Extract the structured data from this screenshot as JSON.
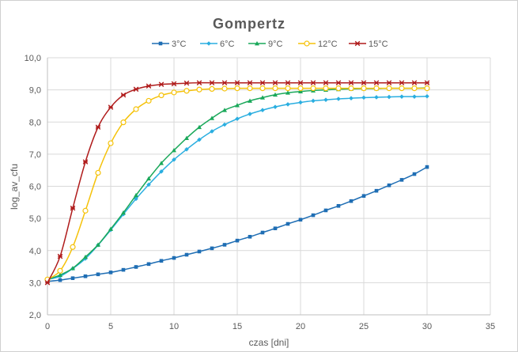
{
  "chart_data": {
    "type": "line",
    "title": "Gompertz",
    "xlabel": "czas [dni]",
    "ylabel": "log_av_cfu",
    "xlim": [
      0,
      35
    ],
    "ylim": [
      2.0,
      10.0
    ],
    "x_ticks": [
      "0",
      "5",
      "10",
      "15",
      "20",
      "25",
      "30",
      "35"
    ],
    "y_ticks": [
      "2,0",
      "3,0",
      "4,0",
      "5,0",
      "6,0",
      "7,0",
      "8,0",
      "9,0",
      "10,0"
    ],
    "grid": true,
    "legend_position": "top",
    "series": [
      {
        "name": "3°C",
        "color": "#1f6eb4",
        "marker": "square",
        "x": [
          0,
          1,
          2,
          3,
          4,
          5,
          6,
          7,
          8,
          9,
          10,
          11,
          12,
          13,
          14,
          15,
          16,
          17,
          18,
          19,
          20,
          21,
          22,
          23,
          24,
          25,
          26,
          27,
          28,
          29,
          30
        ],
        "y": [
          3.04,
          3.08,
          3.14,
          3.2,
          3.26,
          3.32,
          3.4,
          3.49,
          3.58,
          3.68,
          3.77,
          3.87,
          3.97,
          4.07,
          4.18,
          4.31,
          4.43,
          4.56,
          4.69,
          4.83,
          4.96,
          5.1,
          5.25,
          5.39,
          5.54,
          5.7,
          5.86,
          6.03,
          6.2,
          6.38,
          6.6
        ]
      },
      {
        "name": "6°C",
        "color": "#2aaee0",
        "marker": "diamond",
        "x": [
          0,
          1,
          2,
          3,
          4,
          5,
          6,
          7,
          8,
          9,
          10,
          11,
          12,
          13,
          14,
          15,
          16,
          17,
          18,
          19,
          20,
          21,
          22,
          23,
          24,
          25,
          26,
          27,
          28,
          29,
          30
        ],
        "y": [
          3.1,
          3.2,
          3.44,
          3.75,
          4.17,
          4.64,
          5.13,
          5.61,
          6.05,
          6.46,
          6.83,
          7.15,
          7.45,
          7.71,
          7.92,
          8.1,
          8.25,
          8.37,
          8.47,
          8.55,
          8.61,
          8.66,
          8.69,
          8.72,
          8.74,
          8.76,
          8.77,
          8.78,
          8.79,
          8.79,
          8.8
        ]
      },
      {
        "name": "9°C",
        "color": "#1aa85a",
        "marker": "triangle",
        "x": [
          0,
          1,
          2,
          3,
          4,
          5,
          6,
          7,
          8,
          9,
          10,
          11,
          12,
          13,
          14,
          15,
          16,
          17,
          18,
          19,
          20,
          21,
          22,
          23,
          24,
          25,
          26,
          27,
          28,
          29,
          30
        ],
        "y": [
          3.1,
          3.24,
          3.45,
          3.8,
          4.18,
          4.67,
          5.18,
          5.72,
          6.24,
          6.72,
          7.12,
          7.5,
          7.84,
          8.12,
          8.37,
          8.52,
          8.66,
          8.76,
          8.85,
          8.91,
          8.95,
          8.98,
          9.0,
          9.02,
          9.03,
          9.04,
          9.04,
          9.05,
          9.05,
          9.05,
          9.06
        ]
      },
      {
        "name": "12°C",
        "color": "#f5c20a",
        "marker": "circle",
        "x": [
          0,
          1,
          2,
          3,
          4,
          5,
          6,
          7,
          8,
          9,
          10,
          11,
          12,
          13,
          14,
          15,
          16,
          17,
          18,
          19,
          20,
          21,
          22,
          23,
          24,
          25,
          26,
          27,
          28,
          29,
          30
        ],
        "y": [
          3.1,
          3.37,
          4.11,
          5.24,
          6.42,
          7.34,
          7.99,
          8.4,
          8.66,
          8.83,
          8.92,
          8.97,
          9.01,
          9.03,
          9.04,
          9.05,
          9.05,
          9.05,
          9.05,
          9.05,
          9.05,
          9.05,
          9.05,
          9.05,
          9.05,
          9.05,
          9.05,
          9.05,
          9.05,
          9.05,
          9.05
        ]
      },
      {
        "name": "15°C",
        "color": "#b01c1c",
        "marker": "star",
        "x": [
          0,
          1,
          2,
          3,
          4,
          5,
          6,
          7,
          8,
          9,
          10,
          11,
          12,
          13,
          14,
          15,
          16,
          17,
          18,
          19,
          20,
          21,
          22,
          23,
          24,
          25,
          26,
          27,
          28,
          29,
          30
        ],
        "y": [
          3.0,
          3.82,
          5.32,
          6.76,
          7.84,
          8.46,
          8.84,
          9.02,
          9.12,
          9.17,
          9.19,
          9.21,
          9.22,
          9.22,
          9.22,
          9.22,
          9.22,
          9.22,
          9.22,
          9.22,
          9.22,
          9.22,
          9.22,
          9.22,
          9.22,
          9.22,
          9.22,
          9.22,
          9.22,
          9.22,
          9.22
        ]
      }
    ]
  }
}
